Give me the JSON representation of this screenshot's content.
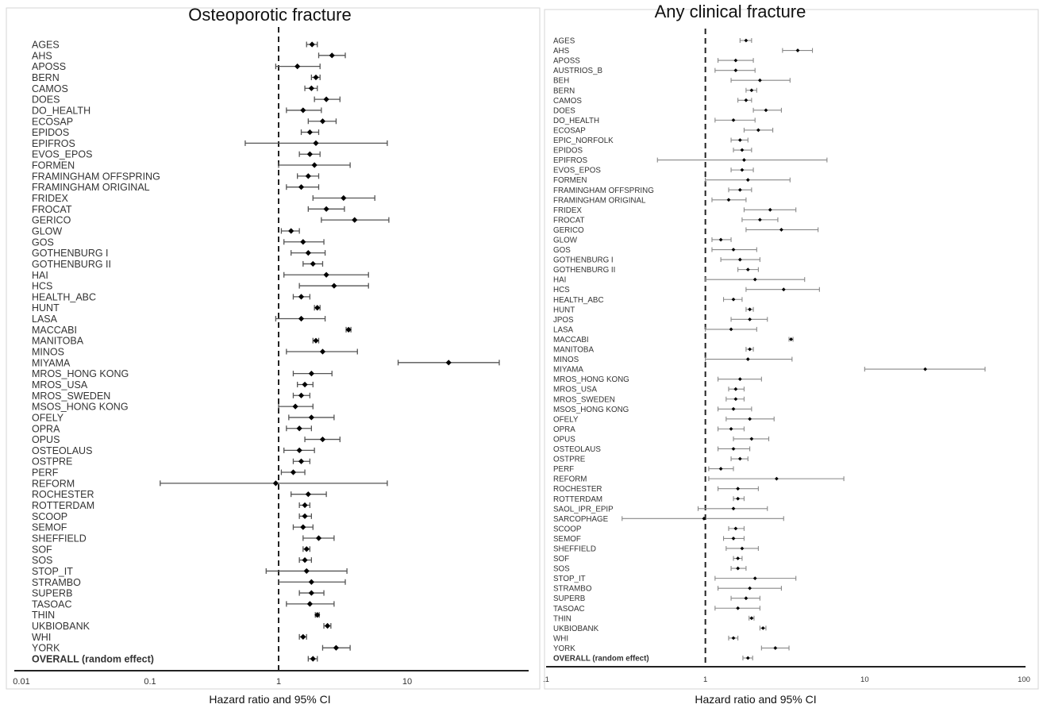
{
  "chart_data": [
    {
      "type": "scatter",
      "title": "Osteoporotic fracture",
      "xlabel": "Hazard ratio and 95% CI",
      "x_scale": "log",
      "xlim": [
        0.01,
        80
      ],
      "x_ticks": [
        "0.01",
        "0.1",
        "1",
        "10"
      ],
      "reference_line": 1,
      "studies": [
        {
          "label": "AGES",
          "hr": 1.82,
          "lo": 1.65,
          "hi": 2.0
        },
        {
          "label": "AHS",
          "hr": 2.6,
          "lo": 2.05,
          "hi": 3.3
        },
        {
          "label": "APOSS",
          "hr": 1.4,
          "lo": 0.95,
          "hi": 2.1
        },
        {
          "label": "BERN",
          "hr": 1.95,
          "lo": 1.8,
          "hi": 2.1
        },
        {
          "label": "CAMOS",
          "hr": 1.8,
          "lo": 1.6,
          "hi": 2.0
        },
        {
          "label": "DOES",
          "hr": 2.35,
          "lo": 1.9,
          "hi": 3.0
        },
        {
          "label": "DO_HEALTH",
          "hr": 1.55,
          "lo": 1.15,
          "hi": 2.15
        },
        {
          "label": "ECOSAP",
          "hr": 2.2,
          "lo": 1.7,
          "hi": 2.8
        },
        {
          "label": "EPIDOS",
          "hr": 1.75,
          "lo": 1.5,
          "hi": 2.05
        },
        {
          "label": "EPIFROS",
          "hr": 1.95,
          "lo": 0.55,
          "hi": 7.0
        },
        {
          "label": "EVOS_EPOS",
          "hr": 1.75,
          "lo": 1.45,
          "hi": 2.1
        },
        {
          "label": "FORMEN",
          "hr": 1.9,
          "lo": 1.0,
          "hi": 3.6
        },
        {
          "label": "FRAMINGHAM OFFSPRING",
          "hr": 1.7,
          "lo": 1.4,
          "hi": 2.05
        },
        {
          "label": "FRAMINGHAM ORIGINAL",
          "hr": 1.5,
          "lo": 1.15,
          "hi": 2.05
        },
        {
          "label": "FRIDEX",
          "hr": 3.2,
          "lo": 1.85,
          "hi": 5.6
        },
        {
          "label": "FROCAT",
          "hr": 2.35,
          "lo": 1.7,
          "hi": 3.25
        },
        {
          "label": "GERICO",
          "hr": 3.9,
          "lo": 2.15,
          "hi": 7.2
        },
        {
          "label": "GLOW",
          "hr": 1.25,
          "lo": 1.05,
          "hi": 1.45
        },
        {
          "label": "GOS",
          "hr": 1.55,
          "lo": 1.1,
          "hi": 2.25
        },
        {
          "label": "GOTHENBURG I",
          "hr": 1.7,
          "lo": 1.25,
          "hi": 2.3
        },
        {
          "label": "GOTHENBURG II",
          "hr": 1.85,
          "lo": 1.55,
          "hi": 2.2
        },
        {
          "label": "HAI",
          "hr": 2.35,
          "lo": 1.1,
          "hi": 5.0
        },
        {
          "label": "HCS",
          "hr": 2.7,
          "lo": 1.45,
          "hi": 5.0
        },
        {
          "label": "HEALTH_ABC",
          "hr": 1.5,
          "lo": 1.3,
          "hi": 1.75
        },
        {
          "label": "HUNT",
          "hr": 2.0,
          "lo": 1.9,
          "hi": 2.1
        },
        {
          "label": "LASA",
          "hr": 1.5,
          "lo": 0.95,
          "hi": 2.3
        },
        {
          "label": "MACCABI",
          "hr": 3.5,
          "lo": 3.35,
          "hi": 3.65
        },
        {
          "label": "MANITOBA",
          "hr": 1.95,
          "lo": 1.85,
          "hi": 2.05
        },
        {
          "label": "MINOS",
          "hr": 2.2,
          "lo": 1.15,
          "hi": 4.1
        },
        {
          "label": "MIYAMA",
          "hr": 21.0,
          "lo": 8.5,
          "hi": 52.0
        },
        {
          "label": "MROS_HONG KONG",
          "hr": 1.8,
          "lo": 1.3,
          "hi": 2.6
        },
        {
          "label": "MROS_USA",
          "hr": 1.6,
          "lo": 1.4,
          "hi": 1.85
        },
        {
          "label": "MROS_SWEDEN",
          "hr": 1.5,
          "lo": 1.3,
          "hi": 1.75
        },
        {
          "label": "MSOS_HONG KONG",
          "hr": 1.35,
          "lo": 1.0,
          "hi": 1.85
        },
        {
          "label": "OFELY",
          "hr": 1.8,
          "lo": 1.2,
          "hi": 2.7
        },
        {
          "label": "OPRA",
          "hr": 1.45,
          "lo": 1.15,
          "hi": 1.8
        },
        {
          "label": "OPUS",
          "hr": 2.2,
          "lo": 1.6,
          "hi": 3.0
        },
        {
          "label": "OSTEOLAUS",
          "hr": 1.45,
          "lo": 1.1,
          "hi": 1.9
        },
        {
          "label": "OSTPRE",
          "hr": 1.5,
          "lo": 1.3,
          "hi": 1.75
        },
        {
          "label": "PERF",
          "hr": 1.3,
          "lo": 1.05,
          "hi": 1.6
        },
        {
          "label": "REFORM",
          "hr": 0.95,
          "lo": 0.12,
          "hi": 7.0
        },
        {
          "label": "ROCHESTER",
          "hr": 1.7,
          "lo": 1.25,
          "hi": 2.35
        },
        {
          "label": "ROTTERDAM",
          "hr": 1.6,
          "lo": 1.45,
          "hi": 1.75
        },
        {
          "label": "SCOOP",
          "hr": 1.6,
          "lo": 1.45,
          "hi": 1.8
        },
        {
          "label": "SEMOF",
          "hr": 1.55,
          "lo": 1.3,
          "hi": 1.85
        },
        {
          "label": "SHEFFIELD",
          "hr": 2.05,
          "lo": 1.55,
          "hi": 2.7
        },
        {
          "label": "SOF",
          "hr": 1.65,
          "lo": 1.55,
          "hi": 1.75
        },
        {
          "label": "SOS",
          "hr": 1.6,
          "lo": 1.45,
          "hi": 1.8
        },
        {
          "label": "STOP_IT",
          "hr": 1.65,
          "lo": 0.8,
          "hi": 3.4
        },
        {
          "label": "STRAMBO",
          "hr": 1.8,
          "lo": 1.0,
          "hi": 3.3
        },
        {
          "label": "SUPERB",
          "hr": 1.8,
          "lo": 1.45,
          "hi": 2.25
        },
        {
          "label": "TASOAC",
          "hr": 1.75,
          "lo": 1.15,
          "hi": 2.7
        },
        {
          "label": "THIN",
          "hr": 2.0,
          "lo": 1.93,
          "hi": 2.07
        },
        {
          "label": "UKBIOBANK",
          "hr": 2.4,
          "lo": 2.25,
          "hi": 2.55
        },
        {
          "label": "WHI",
          "hr": 1.55,
          "lo": 1.45,
          "hi": 1.65
        },
        {
          "label": "YORK",
          "hr": 2.8,
          "lo": 2.2,
          "hi": 3.6
        },
        {
          "label": "OVERALL (random effect)",
          "hr": 1.85,
          "lo": 1.7,
          "hi": 2.0,
          "overall": true
        }
      ]
    },
    {
      "type": "scatter",
      "title": "Any clinical fracture",
      "xlabel": "Hazard ratio and 95% CI",
      "x_scale": "log",
      "xlim": [
        0.1,
        100
      ],
      "x_ticks": [
        ".1",
        "1",
        "10",
        "100"
      ],
      "reference_line": 1,
      "studies": [
        {
          "label": "AGES",
          "hr": 1.8,
          "lo": 1.65,
          "hi": 1.95
        },
        {
          "label": "AHS",
          "hr": 3.8,
          "lo": 3.05,
          "hi": 4.7
        },
        {
          "label": "APOSS",
          "hr": 1.55,
          "lo": 1.2,
          "hi": 2.0
        },
        {
          "label": "AUSTRIOS_B",
          "hr": 1.55,
          "lo": 1.15,
          "hi": 2.05
        },
        {
          "label": "BEH",
          "hr": 2.2,
          "lo": 1.45,
          "hi": 3.4
        },
        {
          "label": "BERN",
          "hr": 1.95,
          "lo": 1.8,
          "hi": 2.1
        },
        {
          "label": "CAMOS",
          "hr": 1.8,
          "lo": 1.6,
          "hi": 1.95
        },
        {
          "label": "DOES",
          "hr": 2.4,
          "lo": 2.0,
          "hi": 3.0
        },
        {
          "label": "DO_HEALTH",
          "hr": 1.5,
          "lo": 1.15,
          "hi": 2.05
        },
        {
          "label": "ECOSAP",
          "hr": 2.15,
          "lo": 1.75,
          "hi": 2.65
        },
        {
          "label": "EPIC_NORFOLK",
          "hr": 1.65,
          "lo": 1.45,
          "hi": 1.85
        },
        {
          "label": "EPIDOS",
          "hr": 1.7,
          "lo": 1.5,
          "hi": 1.95
        },
        {
          "label": "EPIFROS",
          "hr": 1.75,
          "lo": 0.5,
          "hi": 5.8
        },
        {
          "label": "EVOS_EPOS",
          "hr": 1.7,
          "lo": 1.45,
          "hi": 2.0
        },
        {
          "label": "FORMEN",
          "hr": 1.85,
          "lo": 1.0,
          "hi": 3.4
        },
        {
          "label": "FRAMINGHAM OFFSPRING",
          "hr": 1.65,
          "lo": 1.4,
          "hi": 1.95
        },
        {
          "label": "FRAMINGHAM ORIGINAL",
          "hr": 1.4,
          "lo": 1.1,
          "hi": 1.8
        },
        {
          "label": "FRIDEX",
          "hr": 2.55,
          "lo": 1.75,
          "hi": 3.7
        },
        {
          "label": "FROCAT",
          "hr": 2.2,
          "lo": 1.7,
          "hi": 2.85
        },
        {
          "label": "GERICO",
          "hr": 3.0,
          "lo": 1.8,
          "hi": 5.1
        },
        {
          "label": "GLOW",
          "hr": 1.25,
          "lo": 1.1,
          "hi": 1.45
        },
        {
          "label": "GOS",
          "hr": 1.5,
          "lo": 1.1,
          "hi": 2.1
        },
        {
          "label": "GOTHENBURG I",
          "hr": 1.65,
          "lo": 1.25,
          "hi": 2.2
        },
        {
          "label": "GOTHENBURG II",
          "hr": 1.85,
          "lo": 1.6,
          "hi": 2.15
        },
        {
          "label": "HAI",
          "hr": 2.05,
          "lo": 1.0,
          "hi": 4.2
        },
        {
          "label": "HCS",
          "hr": 3.1,
          "lo": 1.8,
          "hi": 5.2
        },
        {
          "label": "HEALTH_ABC",
          "hr": 1.5,
          "lo": 1.3,
          "hi": 1.7
        },
        {
          "label": "HUNT",
          "hr": 1.9,
          "lo": 1.8,
          "hi": 2.0
        },
        {
          "label": "JPOS",
          "hr": 1.9,
          "lo": 1.45,
          "hi": 2.45
        },
        {
          "label": "LASA",
          "hr": 1.45,
          "lo": 1.0,
          "hi": 2.1
        },
        {
          "label": "MACCABI",
          "hr": 3.45,
          "lo": 3.35,
          "hi": 3.55
        },
        {
          "label": "MANITOBA",
          "hr": 1.9,
          "lo": 1.8,
          "hi": 2.0
        },
        {
          "label": "MINOS",
          "hr": 1.85,
          "lo": 1.0,
          "hi": 3.5
        },
        {
          "label": "MIYAMA",
          "hr": 24.0,
          "lo": 10.0,
          "hi": 57.0
        },
        {
          "label": "MROS_HONG KONG",
          "hr": 1.65,
          "lo": 1.2,
          "hi": 2.25
        },
        {
          "label": "MROS_USA",
          "hr": 1.55,
          "lo": 1.4,
          "hi": 1.75
        },
        {
          "label": "MROS_SWEDEN",
          "hr": 1.55,
          "lo": 1.35,
          "hi": 1.75
        },
        {
          "label": "MSOS_HONG KONG",
          "hr": 1.5,
          "lo": 1.2,
          "hi": 1.95
        },
        {
          "label": "OFELY",
          "hr": 1.9,
          "lo": 1.35,
          "hi": 2.7
        },
        {
          "label": "OPRA",
          "hr": 1.45,
          "lo": 1.2,
          "hi": 1.75
        },
        {
          "label": "OPUS",
          "hr": 1.95,
          "lo": 1.5,
          "hi": 2.5
        },
        {
          "label": "OSTEOLAUS",
          "hr": 1.5,
          "lo": 1.2,
          "hi": 1.9
        },
        {
          "label": "OSTPRE",
          "hr": 1.65,
          "lo": 1.45,
          "hi": 1.85
        },
        {
          "label": "PERF",
          "hr": 1.25,
          "lo": 1.05,
          "hi": 1.5
        },
        {
          "label": "REFORM",
          "hr": 2.8,
          "lo": 1.05,
          "hi": 7.4
        },
        {
          "label": "ROCHESTER",
          "hr": 1.6,
          "lo": 1.2,
          "hi": 2.15
        },
        {
          "label": "ROTTERDAM",
          "hr": 1.6,
          "lo": 1.5,
          "hi": 1.75
        },
        {
          "label": "SAOL_IPR_EPIP",
          "hr": 1.5,
          "lo": 0.9,
          "hi": 2.45
        },
        {
          "label": "SARCOPHAGE",
          "hr": 0.98,
          "lo": 0.3,
          "hi": 3.1
        },
        {
          "label": "SCOOP",
          "hr": 1.55,
          "lo": 1.4,
          "hi": 1.75
        },
        {
          "label": "SEMOF",
          "hr": 1.5,
          "lo": 1.3,
          "hi": 1.75
        },
        {
          "label": "SHEFFIELD",
          "hr": 1.7,
          "lo": 1.35,
          "hi": 2.15
        },
        {
          "label": "SOF",
          "hr": 1.6,
          "lo": 1.5,
          "hi": 1.7
        },
        {
          "label": "SOS",
          "hr": 1.6,
          "lo": 1.45,
          "hi": 1.8
        },
        {
          "label": "STOP_IT",
          "hr": 2.05,
          "lo": 1.15,
          "hi": 3.7
        },
        {
          "label": "STRAMBO",
          "hr": 1.9,
          "lo": 1.2,
          "hi": 3.0
        },
        {
          "label": "SUPERB",
          "hr": 1.8,
          "lo": 1.45,
          "hi": 2.2
        },
        {
          "label": "TASOAC",
          "hr": 1.6,
          "lo": 1.15,
          "hi": 2.2
        },
        {
          "label": "THIN",
          "hr": 1.95,
          "lo": 1.88,
          "hi": 2.02
        },
        {
          "label": "UKBIOBANK",
          "hr": 2.3,
          "lo": 2.2,
          "hi": 2.4
        },
        {
          "label": "WHI",
          "hr": 1.5,
          "lo": 1.4,
          "hi": 1.6
        },
        {
          "label": "YORK",
          "hr": 2.75,
          "lo": 2.25,
          "hi": 3.35
        },
        {
          "label": "OVERALL (random effect)",
          "hr": 1.85,
          "lo": 1.72,
          "hi": 1.98,
          "overall": true
        }
      ]
    }
  ]
}
